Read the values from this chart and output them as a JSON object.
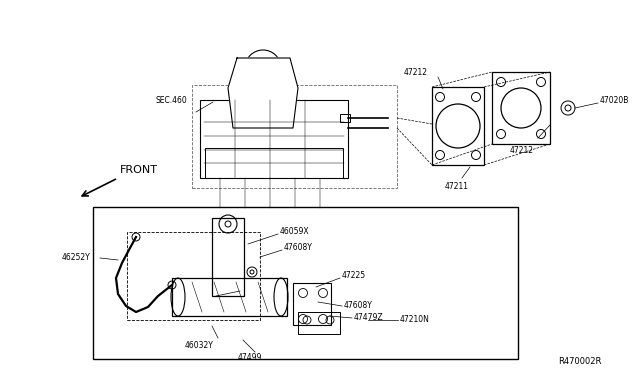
{
  "bg_color": "#ffffff",
  "line_color": "#000000",
  "fig_width": 6.4,
  "fig_height": 3.72,
  "dpi": 100,
  "labels": {
    "sec460": "SEC.460",
    "front": "FRONT",
    "47212_top": "47212",
    "47212_right": "47212",
    "47211": "47211",
    "47020B": "47020B",
    "46252Y": "46252Y",
    "46059X": "46059X",
    "47608Y_top": "47608Y",
    "47225": "47225",
    "47608Y_bot": "47608Y",
    "47479Z": "47479Z",
    "47210N": "47210N",
    "46032Y": "46032Y",
    "47499": "47499",
    "ref": "R470002R"
  },
  "font_size_label": 5.5,
  "font_size_ref": 6
}
